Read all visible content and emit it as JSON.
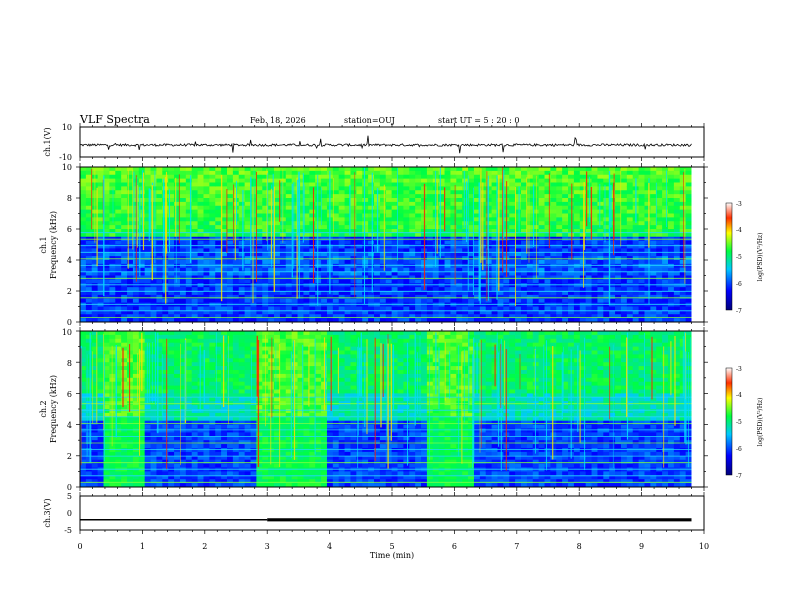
{
  "header": {
    "title": "VLF Spectra",
    "date": "Feb. 18, 2026",
    "station": "station=OUJ",
    "start": "start  UT =  5 : 20 : 0"
  },
  "chart_data": [
    {
      "id": "ch1-waveform",
      "type": "line",
      "ylabel": "ch.1(V)",
      "ylim": [
        -10,
        10
      ],
      "yticks": [
        "10",
        "-10"
      ],
      "xlim": [
        0,
        10
      ],
      "series_description": "noisy waveform near -2 V with sparse impulsive spikes",
      "baseline": -2,
      "x_end": 9.8
    },
    {
      "id": "ch1-spectrogram",
      "type": "heatmap",
      "ylabel_line1": "ch.1",
      "ylabel_line2": "Frequency (kHz)",
      "ylim": [
        0,
        10
      ],
      "yticks": [
        "0",
        "2",
        "4",
        "6",
        "8",
        "10"
      ],
      "xlim": [
        0,
        10
      ],
      "x_end": 9.8,
      "colorbar": {
        "label": "log(PSD)(V²/Hz)",
        "range": [
          -7,
          -3
        ],
        "ticks": [
          "-3",
          "-4",
          "-5",
          "-6",
          "-7"
        ]
      },
      "bright_band_kHz": [
        5.5,
        10
      ],
      "quiet_windows_min": []
    },
    {
      "id": "ch2-spectrogram",
      "type": "heatmap",
      "ylabel_line1": "ch.2",
      "ylabel_line2": "Frequency (kHz)",
      "ylim": [
        0,
        10
      ],
      "yticks": [
        "0",
        "2",
        "4",
        "6",
        "8",
        "10"
      ],
      "xlim": [
        0,
        10
      ],
      "x_end": 9.8,
      "colorbar": {
        "label": "log(PSD)(V²/Hz)",
        "range": [
          -7,
          -3
        ],
        "ticks": [
          "-3",
          "-4",
          "-5",
          "-6",
          "-7"
        ]
      },
      "bright_blocks_min": [
        [
          0.35,
          1.0
        ],
        [
          2.85,
          3.95
        ],
        [
          5.6,
          6.35
        ]
      ]
    },
    {
      "id": "ch3-waveform",
      "type": "line",
      "ylabel": "ch.3(V)",
      "ylim": [
        -5,
        5
      ],
      "yticks": [
        "5",
        "0",
        "-5"
      ],
      "xlim": [
        0,
        10
      ],
      "xlabel": "Time  (min)",
      "xticks": [
        "0",
        "1",
        "2",
        "3",
        "4",
        "5",
        "6",
        "7",
        "8",
        "9",
        "10"
      ],
      "segments": [
        {
          "x0": 0,
          "x1": 3.0,
          "y": -2
        },
        {
          "x0": 3.0,
          "x1": 9.8,
          "y": -2
        }
      ]
    }
  ]
}
